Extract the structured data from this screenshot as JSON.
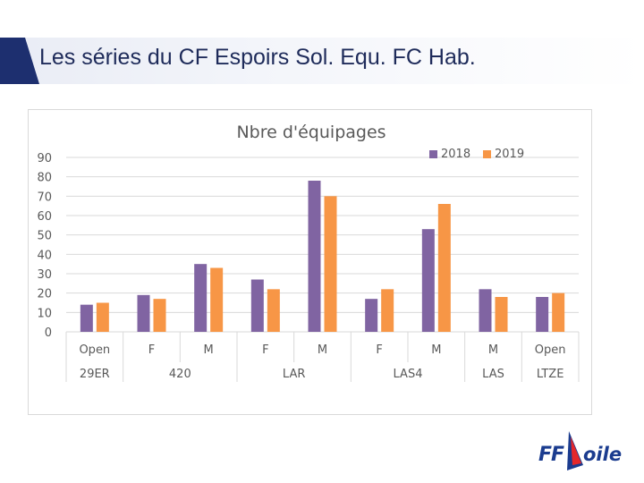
{
  "slide": {
    "title": "Les séries du CF Espoirs Sol. Equ. FC Hab."
  },
  "logo": {
    "text_ff": "FF",
    "text_voile": "oile"
  },
  "colors": {
    "title_accent": "#1d2f6f",
    "series_2018": "#8064a2",
    "series_2019": "#f79646",
    "grid": "#d9d9d9",
    "text": "#595959"
  },
  "chart_data": {
    "type": "bar",
    "title": "Nbre d'équipages",
    "xlabel": "",
    "ylabel": "",
    "ylim": [
      0,
      90
    ],
    "yticks": [
      0,
      10,
      20,
      30,
      40,
      50,
      60,
      70,
      80,
      90
    ],
    "grid": true,
    "legend_position": "top-right",
    "categories": [
      "Open",
      "F",
      "M",
      "F",
      "M",
      "F",
      "M",
      "M",
      "Open"
    ],
    "groups": [
      {
        "label": "29ER",
        "span": 1
      },
      {
        "label": "420",
        "span": 2
      },
      {
        "label": "LAR",
        "span": 2
      },
      {
        "label": "LAS4",
        "span": 2
      },
      {
        "label": "LAS",
        "span": 1
      },
      {
        "label": "LTZE",
        "span": 1
      }
    ],
    "series": [
      {
        "name": "2018",
        "values": [
          14,
          19,
          35,
          27,
          78,
          17,
          53,
          22,
          18
        ]
      },
      {
        "name": "2019",
        "values": [
          15,
          17,
          33,
          22,
          70,
          22,
          66,
          18,
          20
        ]
      }
    ]
  }
}
